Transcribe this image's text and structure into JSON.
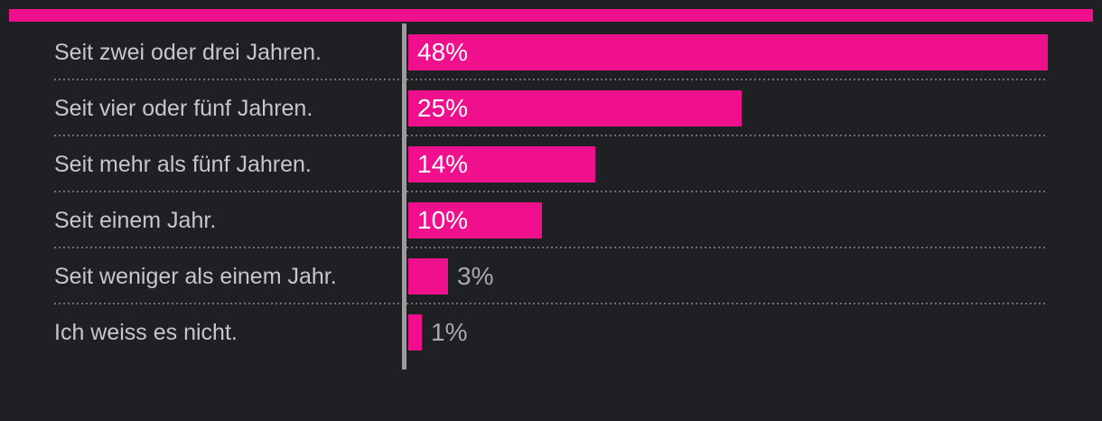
{
  "chart": {
    "background_color": "#1f2023",
    "accent_bar_color": "#f00f8c"
  },
  "chart_data": {
    "type": "bar",
    "orientation": "horizontal",
    "categories": [
      "Seit zwei oder drei Jahren.",
      "Seit vier oder fünf Jahren.",
      "Seit mehr als fünf Jahren.",
      "Seit einem Jahr.",
      "Seit weniger als einem Jahr.",
      "Ich weiss es nicht."
    ],
    "values": [
      48,
      25,
      14,
      10,
      3,
      1
    ],
    "value_labels": [
      "48%",
      "25%",
      "14%",
      "10%",
      "3%",
      "1%"
    ],
    "xlim": [
      0,
      48
    ],
    "legend": "none",
    "grid": "dotted horizontal separators between rows",
    "bar_color": "#f00f8c",
    "axis_line_color": "#9b9b9b",
    "separator_color": "#6e7072",
    "category_label_color": "#c5c7c8",
    "value_label_inside_color": "#ffffff",
    "value_label_outside_color": "#a7a9aa",
    "inside_label_min_value": 10
  }
}
